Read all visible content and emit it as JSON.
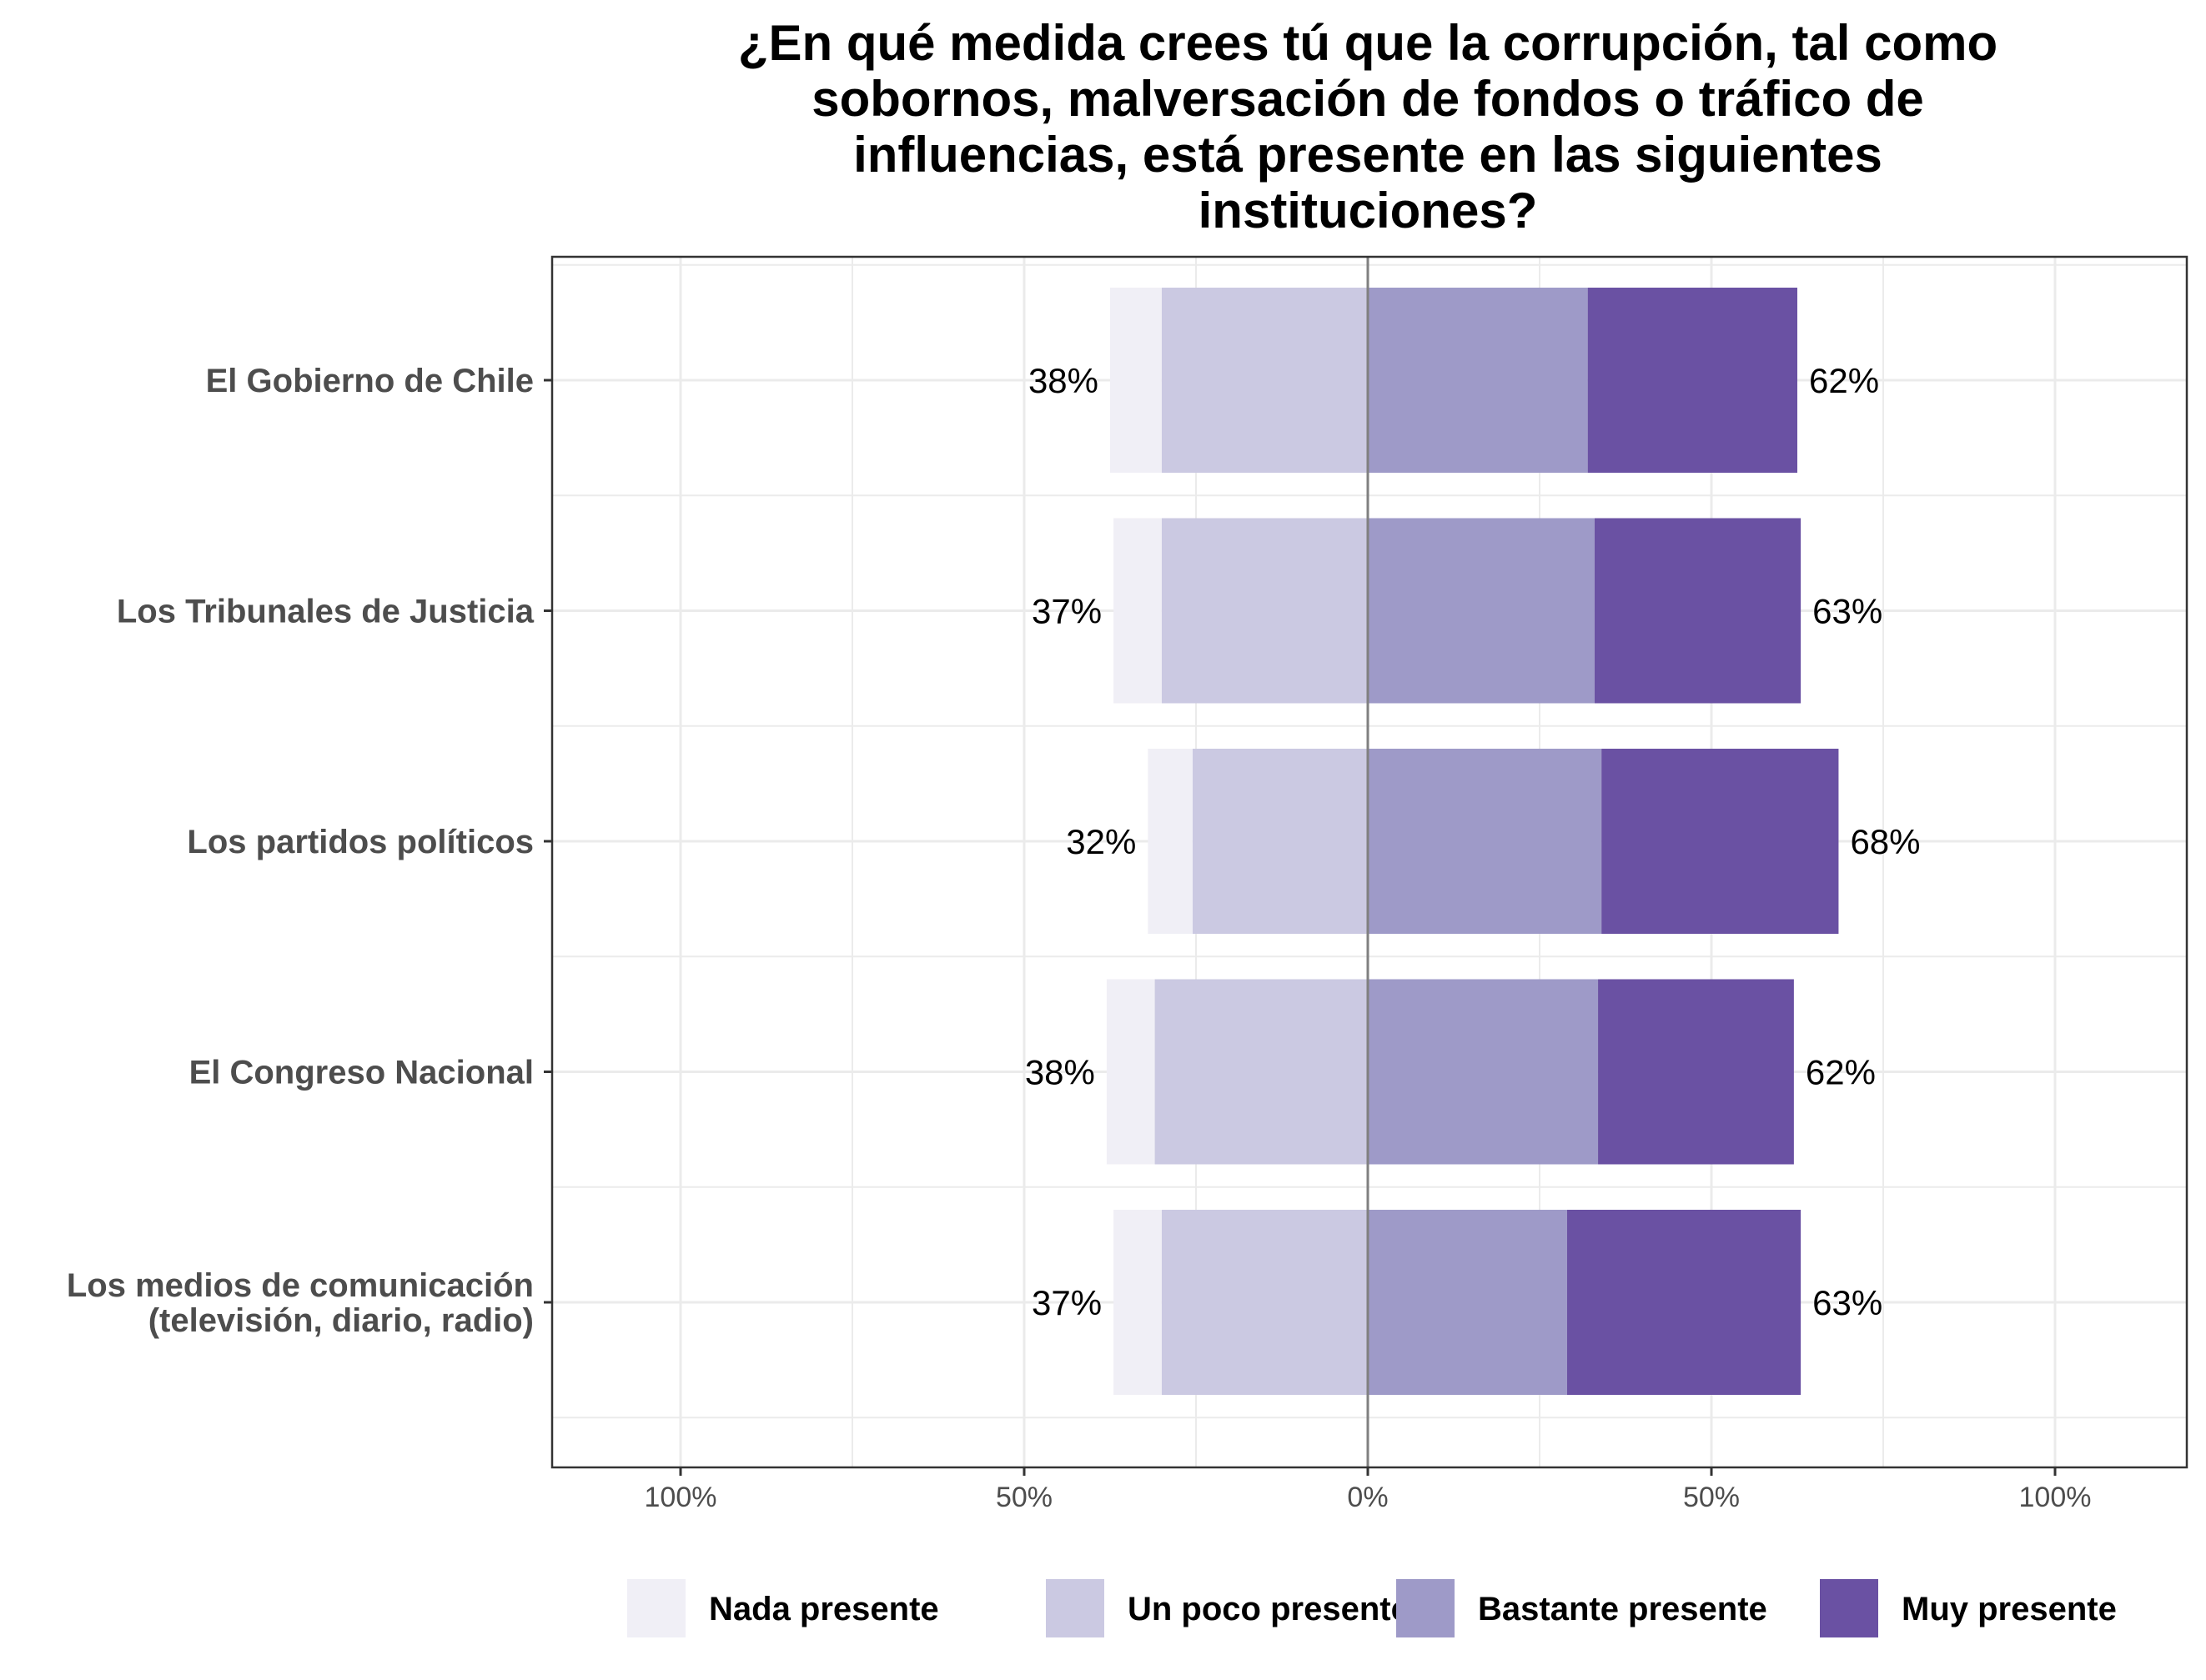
{
  "chart_data": {
    "type": "bar",
    "orientation": "horizontal",
    "stacking": "diverging",
    "title": "¿En qué medida crees tú que la corrupción, tal como sobornos, malversación de fondos o tráfico de influencias, está presente en las siguientes instituciones?",
    "title_lines": [
      "¿En qué medida crees tú que la corrupción, tal como",
      "sobornos, malversación de fondos o tráfico de",
      "influencias, está presente en las siguientes",
      "instituciones?"
    ],
    "xlabel": "",
    "ylabel": "",
    "xlim": [
      -100,
      100
    ],
    "x_ticks": [
      -100,
      -50,
      0,
      50,
      100
    ],
    "x_tick_labels": [
      "100%",
      "50%",
      "0%",
      "50%",
      "100%"
    ],
    "grid": true,
    "legend_position": "bottom",
    "categories": [
      [
        "El Gobierno de Chile"
      ],
      [
        "Los Tribunales de Justicia"
      ],
      [
        "Los partidos políticos"
      ],
      [
        "El Congreso Nacional"
      ],
      [
        "Los medios de comunicación",
        "(televisión, diario, radio)"
      ]
    ],
    "series": [
      {
        "name": "Nada presente",
        "side": "negative",
        "color": "#f0eff6",
        "values": [
          7.5,
          7,
          6.5,
          7,
          7
        ]
      },
      {
        "name": "Un poco presente",
        "side": "negative",
        "color": "#cbc9e2",
        "values": [
          30,
          30,
          25.5,
          31,
          30
        ]
      },
      {
        "name": "Bastante presente",
        "side": "positive",
        "color": "#9e9ac8",
        "values": [
          32,
          33,
          34,
          33.5,
          29
        ]
      },
      {
        "name": "Muy presente",
        "side": "positive",
        "color": "#6a51a3",
        "values": [
          30.5,
          30,
          34.5,
          28.5,
          34
        ]
      }
    ],
    "negative_totals": [
      "38%",
      "37%",
      "32%",
      "38%",
      "37%"
    ],
    "positive_totals": [
      "62%",
      "63%",
      "68%",
      "62%",
      "63%"
    ],
    "zero_line_color": "#808080",
    "panel_border_color": "#333333",
    "grid_color": "#ebebeb"
  }
}
